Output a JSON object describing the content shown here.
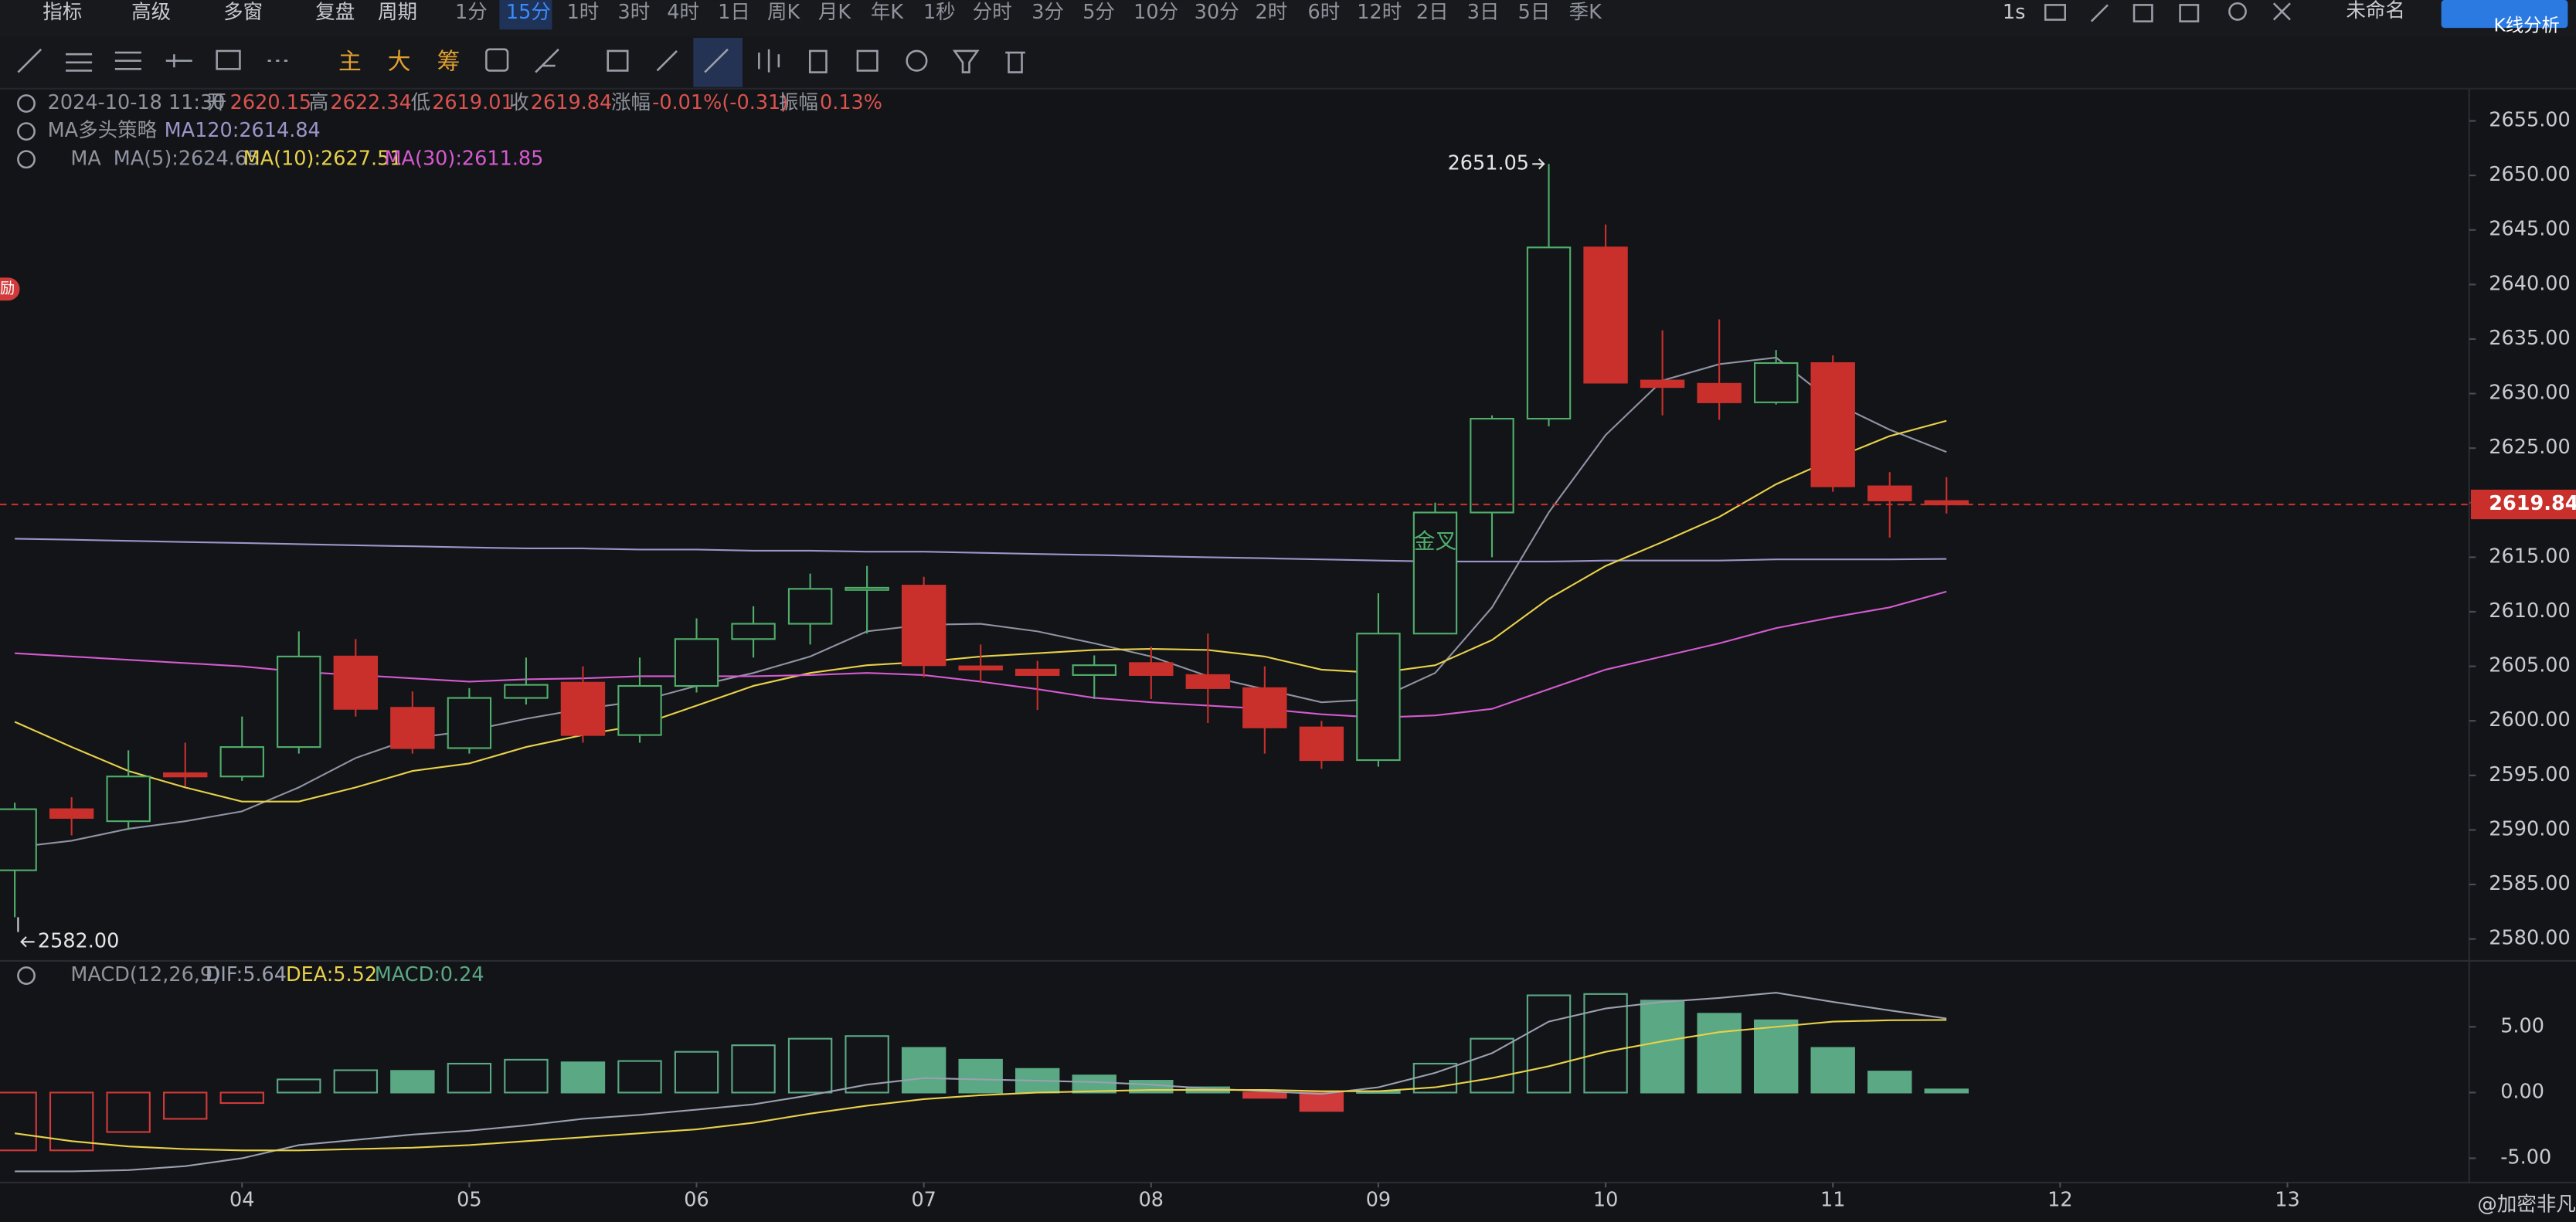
{
  "toolbar": {
    "menus": [
      "指标",
      "高级",
      "多窗",
      "复盘",
      "周期"
    ],
    "periods": [
      "1分",
      "15分",
      "1时",
      "3时",
      "4时",
      "1日",
      "周K",
      "月K",
      "年K",
      "1秒",
      "分时",
      "3分",
      "5分",
      "10分",
      "30分",
      "2时",
      "6时",
      "12时",
      "2日",
      "3日",
      "5日",
      "季K"
    ],
    "active_period": 1,
    "speed": "1s",
    "workspace": "未命名",
    "button": "K线分析"
  },
  "drawing_toolbar": {
    "layers": [
      "主",
      "大",
      "筹"
    ]
  },
  "info": {
    "datetime": "2024-10-18 11:30",
    "open_label": "开",
    "open": "2620.15",
    "high_label": "高",
    "high": "2622.34",
    "low_label": "低",
    "low": "2619.01",
    "close_label": "收",
    "close": "2619.84",
    "change_label": "涨幅",
    "change": "-0.01%(-0.31)",
    "amplitude_label": "振幅",
    "amplitude": "0.13%",
    "strategy": "MA多头策略",
    "indicator": "MA"
  },
  "badge": "励",
  "chart_data": [
    {
      "type": "candlestick",
      "open": [
        2586.3,
        2591.9,
        2590.8,
        2595.2,
        2594.9,
        2597.6,
        2605.9,
        2601.2,
        2597.5,
        2602.1,
        2603.5,
        2598.7,
        2603.2,
        2607.5,
        2608.9,
        2612.0,
        2612.4,
        2605.0,
        2604.7,
        2604.2,
        2605.3,
        2604.2,
        2603.0,
        2599.4,
        2596.4,
        2608.0,
        2619.1,
        2627.7,
        2643.4,
        2631.2,
        2630.9,
        2629.2,
        2632.8,
        2621.5,
        2620.15
      ],
      "high": [
        2592.5,
        2593.0,
        2597.3,
        2598.0,
        2600.4,
        2608.2,
        2607.5,
        2602.7,
        2603.0,
        2605.8,
        2605.0,
        2605.8,
        2609.4,
        2610.5,
        2613.5,
        2614.2,
        2613.2,
        2607.0,
        2605.5,
        2606.0,
        2606.8,
        2608.0,
        2605.0,
        2600.0,
        2611.7,
        2620.0,
        2628.0,
        2651.05,
        2645.5,
        2635.8,
        2636.8,
        2634.0,
        2633.5,
        2622.8,
        2622.34
      ],
      "low": [
        2582.0,
        2589.5,
        2590.0,
        2594.0,
        2594.5,
        2597.0,
        2600.4,
        2597.0,
        2597.0,
        2601.5,
        2598.0,
        2598.0,
        2602.6,
        2605.8,
        2607.0,
        2608.0,
        2604.0,
        2603.5,
        2601.0,
        2602.0,
        2602.0,
        2599.8,
        2597.0,
        2595.6,
        2595.8,
        2608.0,
        2615.0,
        2627.0,
        2631.0,
        2628.0,
        2627.6,
        2629.0,
        2621.0,
        2616.8,
        2619.01
      ],
      "close": [
        2591.9,
        2591.1,
        2594.9,
        2594.9,
        2597.6,
        2605.9,
        2601.1,
        2597.5,
        2602.1,
        2603.3,
        2598.7,
        2603.2,
        2607.5,
        2608.9,
        2612.1,
        2612.2,
        2605.1,
        2604.7,
        2604.2,
        2605.1,
        2604.2,
        2603.0,
        2599.4,
        2596.4,
        2608.0,
        2619.1,
        2627.7,
        2643.4,
        2631.0,
        2630.6,
        2629.2,
        2632.8,
        2621.5,
        2620.2,
        2619.84
      ],
      "up_color": "#4fae6b",
      "down_color": "#c9302c",
      "lines": [
        {
          "label": "MA120:2614.84",
          "color": "#9b95c9",
          "values": [
            2616.7,
            2616.6,
            2616.5,
            2616.4,
            2616.3,
            2616.2,
            2616.1,
            2616.0,
            2615.9,
            2615.8,
            2615.8,
            2615.7,
            2615.7,
            2615.6,
            2615.6,
            2615.5,
            2615.5,
            2615.4,
            2615.3,
            2615.2,
            2615.1,
            2615.0,
            2614.9,
            2614.8,
            2614.7,
            2614.6,
            2614.6,
            2614.6,
            2614.7,
            2614.7,
            2614.7,
            2614.8,
            2614.8,
            2614.8,
            2614.84
          ]
        },
        {
          "label": "MA(5):2624.65",
          "color": "#8f93a3",
          "values": [
            2588.4,
            2589.0,
            2590.1,
            2590.8,
            2591.7,
            2593.9,
            2596.6,
            2598.4,
            2599.1,
            2600.2,
            2601.1,
            2601.8,
            2603.2,
            2604.4,
            2605.9,
            2608.2,
            2608.8,
            2608.9,
            2608.2,
            2607.1,
            2605.9,
            2604.1,
            2602.9,
            2601.7,
            2602.0,
            2604.4,
            2610.4,
            2619.1,
            2626.2,
            2631.2,
            2632.7,
            2633.3,
            2629.2,
            2626.7,
            2624.65
          ]
        },
        {
          "label": "MA(10):2627.51",
          "color": "#e8d14a",
          "values": [
            2599.9,
            2597.6,
            2595.4,
            2593.9,
            2592.6,
            2592.6,
            2593.9,
            2595.4,
            2596.1,
            2597.6,
            2598.7,
            2599.6,
            2601.4,
            2603.2,
            2604.4,
            2605.1,
            2605.4,
            2605.9,
            2606.2,
            2606.5,
            2606.6,
            2606.5,
            2605.9,
            2604.7,
            2604.4,
            2605.1,
            2607.4,
            2611.2,
            2614.2,
            2616.4,
            2618.7,
            2621.7,
            2624.0,
            2626.1,
            2627.51
          ]
        },
        {
          "label": "MA(30):2611.85",
          "color": "#d45ad0",
          "values": [
            2606.2,
            2605.9,
            2605.6,
            2605.3,
            2605.0,
            2604.5,
            2604.2,
            2603.9,
            2603.6,
            2603.8,
            2603.9,
            2604.1,
            2604.1,
            2604.1,
            2604.2,
            2604.4,
            2604.2,
            2603.6,
            2602.9,
            2602.1,
            2601.7,
            2601.4,
            2601.1,
            2600.6,
            2600.3,
            2600.5,
            2601.1,
            2602.9,
            2604.7,
            2605.9,
            2607.1,
            2608.5,
            2609.5,
            2610.4,
            2611.85
          ]
        }
      ],
      "ylim": [
        2578,
        2657.8
      ],
      "yticks": [
        {
          "value": 2580,
          "label": "2580.00"
        },
        {
          "value": 2585,
          "label": "2585.00"
        },
        {
          "value": 2590,
          "label": "2590.00"
        },
        {
          "value": 2595,
          "label": "2595.00"
        },
        {
          "value": 2600,
          "label": "2600.00"
        },
        {
          "value": 2605,
          "label": "2605.00"
        },
        {
          "value": 2610,
          "label": "2610.00"
        },
        {
          "value": 2615,
          "label": "2615.00"
        },
        {
          "value": 2620,
          "label": "2620.00"
        },
        {
          "value": 2625,
          "label": "2625.00"
        },
        {
          "value": 2630,
          "label": "2630.00"
        },
        {
          "value": 2635,
          "label": "2635.00"
        },
        {
          "value": 2640,
          "label": "2640.00"
        },
        {
          "value": 2645,
          "label": "2645.00"
        },
        {
          "value": 2650,
          "label": "2650.00"
        },
        {
          "value": 2655,
          "label": "2655.00"
        }
      ],
      "xlim": [
        -0.26,
        43.2
      ],
      "max_label": "2651.05",
      "min_label": "2582.00",
      "last_label": "2619.84",
      "signals": [
        {
          "text": "金叉",
          "x": 25
        }
      ]
    },
    {
      "type": "macd",
      "title": "MACD(12,26,9)",
      "values": [
        -4.4,
        -4.4,
        -3.0,
        -2.0,
        -0.8,
        1.0,
        1.7,
        1.65,
        2.2,
        2.5,
        2.3,
        2.4,
        3.1,
        3.6,
        4.1,
        4.3,
        3.4,
        2.5,
        1.8,
        1.3,
        0.9,
        0.4,
        -0.4,
        -1.4,
        0.1,
        2.2,
        4.1,
        7.4,
        7.5,
        7.0,
        6.0,
        5.5,
        3.4,
        1.6,
        0.24
      ],
      "value_label": "MACD:0.24",
      "up_color": "#5aa884",
      "down_color": "#d03a3a",
      "lines": [
        {
          "label": "DIF:5.64",
          "color": "#9aa0b0",
          "values": [
            -6.0,
            -6.0,
            -5.9,
            -5.6,
            -5.0,
            -4.0,
            -3.6,
            -3.2,
            -2.9,
            -2.5,
            -2.0,
            -1.7,
            -1.3,
            -0.9,
            -0.2,
            0.6,
            1.1,
            1.0,
            0.9,
            0.8,
            0.6,
            0.3,
            0.1,
            -0.1,
            0.4,
            1.5,
            3.0,
            5.4,
            6.4,
            6.9,
            7.2,
            7.6,
            6.9,
            6.25,
            5.64
          ]
        },
        {
          "label": "DEA:5.52",
          "color": "#e8d14a",
          "values": [
            -3.1,
            -3.7,
            -4.1,
            -4.3,
            -4.4,
            -4.4,
            -4.3,
            -4.2,
            -4.0,
            -3.7,
            -3.4,
            -3.1,
            -2.8,
            -2.3,
            -1.6,
            -1.0,
            -0.5,
            -0.2,
            0.0,
            0.1,
            0.2,
            0.2,
            0.2,
            0.1,
            0.1,
            0.4,
            1.1,
            2.0,
            3.1,
            3.9,
            4.6,
            5.0,
            5.4,
            5.5,
            5.52
          ]
        }
      ],
      "ylim": [
        -6.6,
        9.9
      ],
      "yticks": [
        {
          "value": 5,
          "label": "5.00"
        },
        {
          "value": 0,
          "label": "0.00"
        },
        {
          "value": -5,
          "label": "-5.00"
        }
      ],
      "xlim": [
        -0.26,
        43.2
      ],
      "xticks": [
        {
          "value": 4,
          "label": "04"
        },
        {
          "value": 8,
          "label": "05"
        },
        {
          "value": 12,
          "label": "06"
        },
        {
          "value": 16,
          "label": "07"
        },
        {
          "value": 20,
          "label": "08"
        },
        {
          "value": 24,
          "label": "09"
        },
        {
          "value": 28,
          "label": "10"
        },
        {
          "value": 32,
          "label": "11"
        },
        {
          "value": 36,
          "label": "12"
        },
        {
          "value": 40,
          "label": "13"
        }
      ]
    }
  ],
  "watermark": "@加密非凡"
}
